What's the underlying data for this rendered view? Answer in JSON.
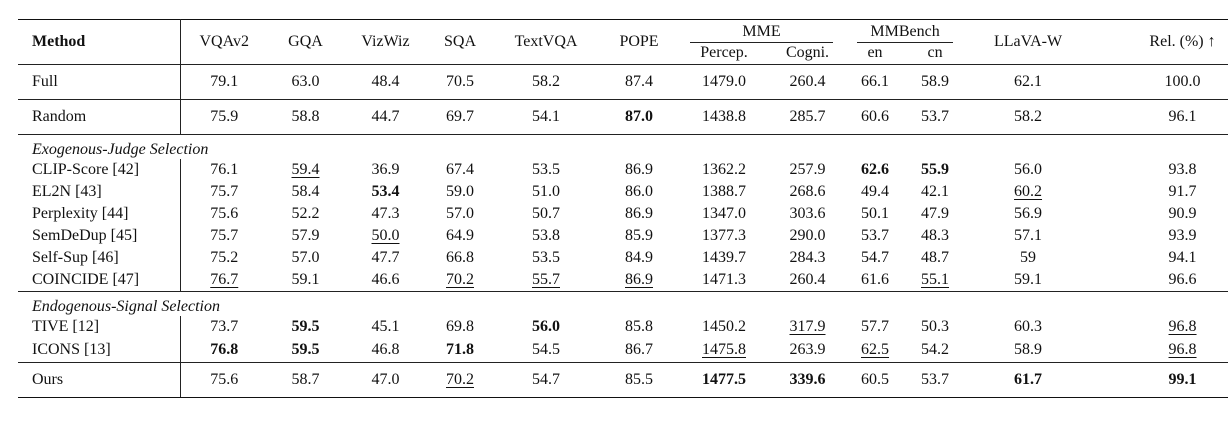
{
  "headers": {
    "method": "Method",
    "cols": [
      "VQAv2",
      "GQA",
      "VizWiz",
      "SQA",
      "TextVQA",
      "POPE"
    ],
    "mme": {
      "label": "MME",
      "sub": [
        "Percep.",
        "Cogni."
      ]
    },
    "mmbench": {
      "label": "MMBench",
      "sub": [
        "en",
        "cn"
      ]
    },
    "llava": "LLaVA-W",
    "rel": "Rel. (%) ↑"
  },
  "baselines": [
    {
      "method": "Full",
      "values": [
        "79.1",
        "63.0",
        "48.4",
        "70.5",
        "58.2",
        "87.4",
        "1479.0",
        "260.4",
        "66.1",
        "58.9",
        "62.1",
        "100.0"
      ]
    },
    {
      "method": "Random",
      "values": [
        "75.9",
        "58.8",
        "44.7",
        "69.7",
        "54.1",
        "87.0",
        "1438.8",
        "285.7",
        "60.6",
        "53.7",
        "58.2",
        "96.1"
      ]
    }
  ],
  "sections": [
    {
      "title": "Exogenous-Judge Selection",
      "rows": [
        {
          "method": "CLIP-Score [42]",
          "values": [
            "76.1",
            "59.4",
            "36.9",
            "67.4",
            "53.5",
            "86.9",
            "1362.2",
            "257.9",
            "62.6",
            "55.9",
            "56.0",
            "93.8"
          ]
        },
        {
          "method": "EL2N [43]",
          "values": [
            "75.7",
            "58.4",
            "53.4",
            "59.0",
            "51.0",
            "86.0",
            "1388.7",
            "268.6",
            "49.4",
            "42.1",
            "60.2",
            "91.7"
          ]
        },
        {
          "method": "Perplexity [44]",
          "values": [
            "75.6",
            "52.2",
            "47.3",
            "57.0",
            "50.7",
            "86.9",
            "1347.0",
            "303.6",
            "50.1",
            "47.9",
            "56.9",
            "90.9"
          ]
        },
        {
          "method": "SemDeDup [45]",
          "values": [
            "75.7",
            "57.9",
            "50.0",
            "64.9",
            "53.8",
            "85.9",
            "1377.3",
            "290.0",
            "53.7",
            "48.3",
            "57.1",
            "93.9"
          ]
        },
        {
          "method": "Self-Sup [46]",
          "values": [
            "75.2",
            "57.0",
            "47.7",
            "66.8",
            "53.5",
            "84.9",
            "1439.7",
            "284.3",
            "54.7",
            "48.7",
            "59",
            "94.1"
          ]
        },
        {
          "method": "COINCIDE [47]",
          "values": [
            "76.7",
            "59.1",
            "46.6",
            "70.2",
            "55.7",
            "86.9",
            "1471.3",
            "260.4",
            "61.6",
            "55.1",
            "59.1",
            "96.6"
          ]
        }
      ]
    },
    {
      "title": "Endogenous-Signal Selection",
      "rows": [
        {
          "method": "TIVE [12]",
          "values": [
            "73.7",
            "59.5",
            "45.1",
            "69.8",
            "56.0",
            "85.8",
            "1450.2",
            "317.9",
            "57.7",
            "50.3",
            "60.3",
            "96.8"
          ]
        },
        {
          "method": "ICONS [13]",
          "values": [
            "76.8",
            "59.5",
            "46.8",
            "71.8",
            "54.5",
            "86.7",
            "1475.8",
            "263.9",
            "62.5",
            "54.2",
            "58.9",
            "96.8"
          ]
        }
      ]
    }
  ],
  "ours": {
    "method": "Ours",
    "values": [
      "75.6",
      "58.7",
      "47.0",
      "70.2",
      "54.7",
      "85.5",
      "1477.5",
      "339.6",
      "60.5",
      "53.7",
      "61.7",
      "99.1"
    ]
  }
}
